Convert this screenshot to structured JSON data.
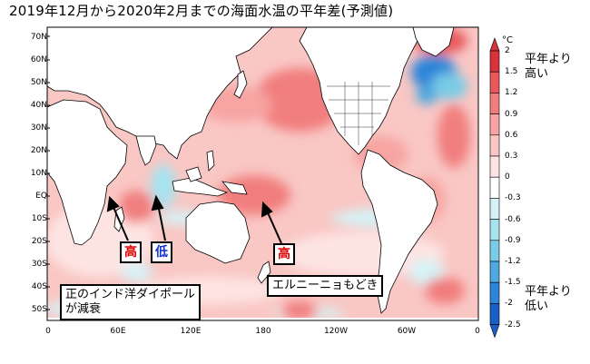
{
  "title": "2019年12月から2020年2月までの海面水温の平年差(予測値)",
  "lat_labels": [
    "70N",
    "60N",
    "50N",
    "40N",
    "30N",
    "20N",
    "10N",
    "EQ",
    "10S",
    "20S",
    "30S",
    "40S",
    "50S"
  ],
  "lon_labels": [
    "0",
    "60E",
    "120E",
    "180",
    "120W",
    "60W",
    "0"
  ],
  "colorbar": {
    "unit": "°C",
    "ticks": [
      "2",
      "1.5",
      "1.2",
      "0.9",
      "0.6",
      "0.3",
      "0",
      "-0.3",
      "-0.6",
      "-0.9",
      "-1.2",
      "-1.5",
      "-2",
      "-2.5"
    ],
    "colors": [
      "#d8323c",
      "#e8585c",
      "#f17e7e",
      "#f7a4a2",
      "#fbc7c5",
      "#fde4e3",
      "#ffffff",
      "#d5f3f7",
      "#a6e3ef",
      "#79cbe6",
      "#4fa8df",
      "#2c85d8",
      "#1a5fc7"
    ]
  },
  "legend": {
    "high": "平年より\n高い",
    "low": "平年より\n低い"
  },
  "annotations": {
    "high1": "高",
    "low1": "低",
    "high2": "高",
    "iod": "正のインド洋ダイポール\nが減衰",
    "enso": "エルニーニョもどき"
  }
}
